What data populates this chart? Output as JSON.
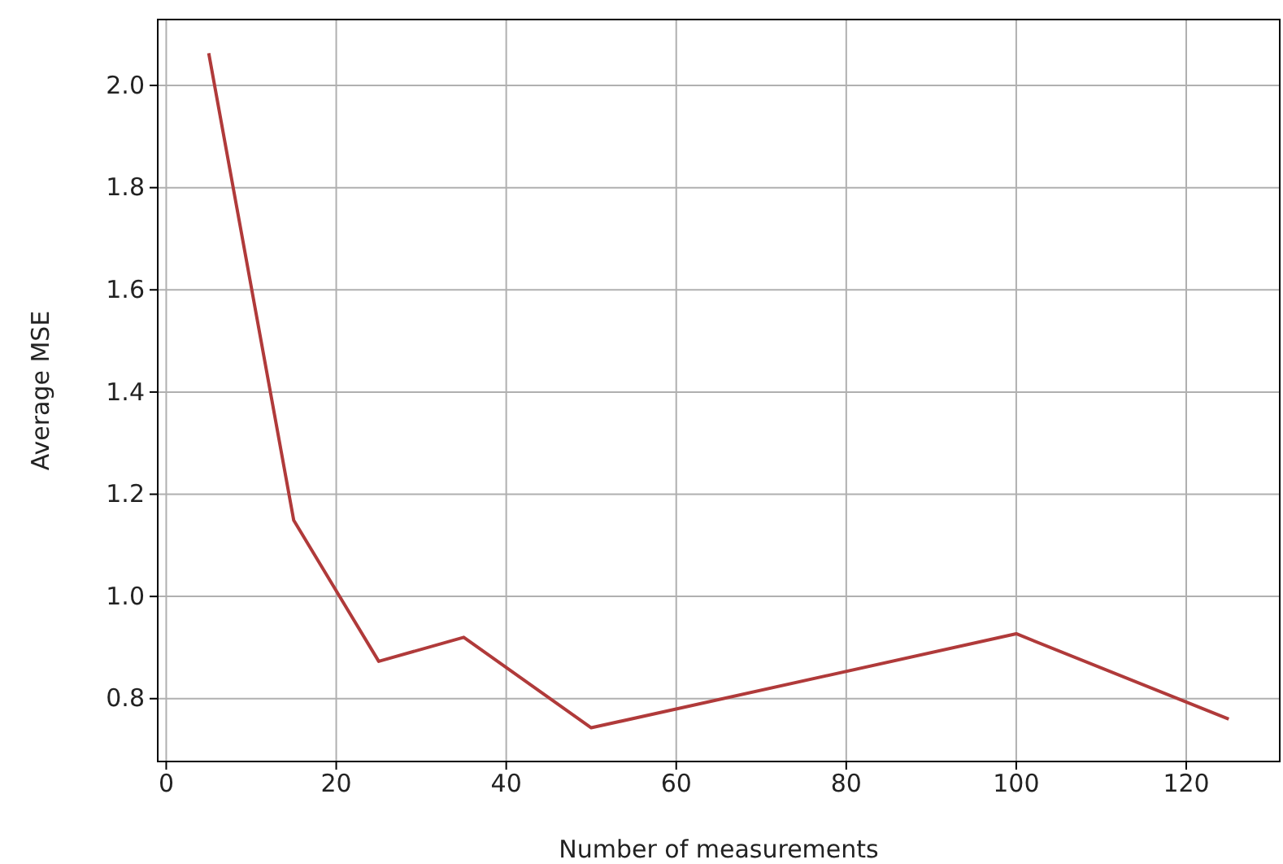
{
  "chart_data": {
    "type": "line",
    "xlabel": "Number of measurements",
    "ylabel": "Average MSE",
    "x": [
      5,
      15,
      25,
      35,
      50,
      100,
      125
    ],
    "series": [
      {
        "color": "#b03a3a",
        "values": [
          2.063,
          1.149,
          0.873,
          0.92,
          0.743,
          0.927,
          0.76
        ]
      }
    ],
    "xlim": [
      -1,
      131
    ],
    "xticks": [
      0,
      20,
      40,
      60,
      80,
      100,
      120
    ],
    "ylim": [
      0.677,
      2.129
    ],
    "yticks": [
      {
        "value": 0.8,
        "label": "0.8"
      },
      {
        "value": 1.0,
        "label": "1.0"
      },
      {
        "value": 1.2,
        "label": "1.2"
      },
      {
        "value": 1.4,
        "label": "1.4"
      },
      {
        "value": 1.6,
        "label": "1.6"
      },
      {
        "value": 1.8,
        "label": "1.8"
      },
      {
        "value": 2.0,
        "label": "2.0"
      }
    ],
    "grid": true,
    "marker": "none",
    "line_style": "solid"
  }
}
